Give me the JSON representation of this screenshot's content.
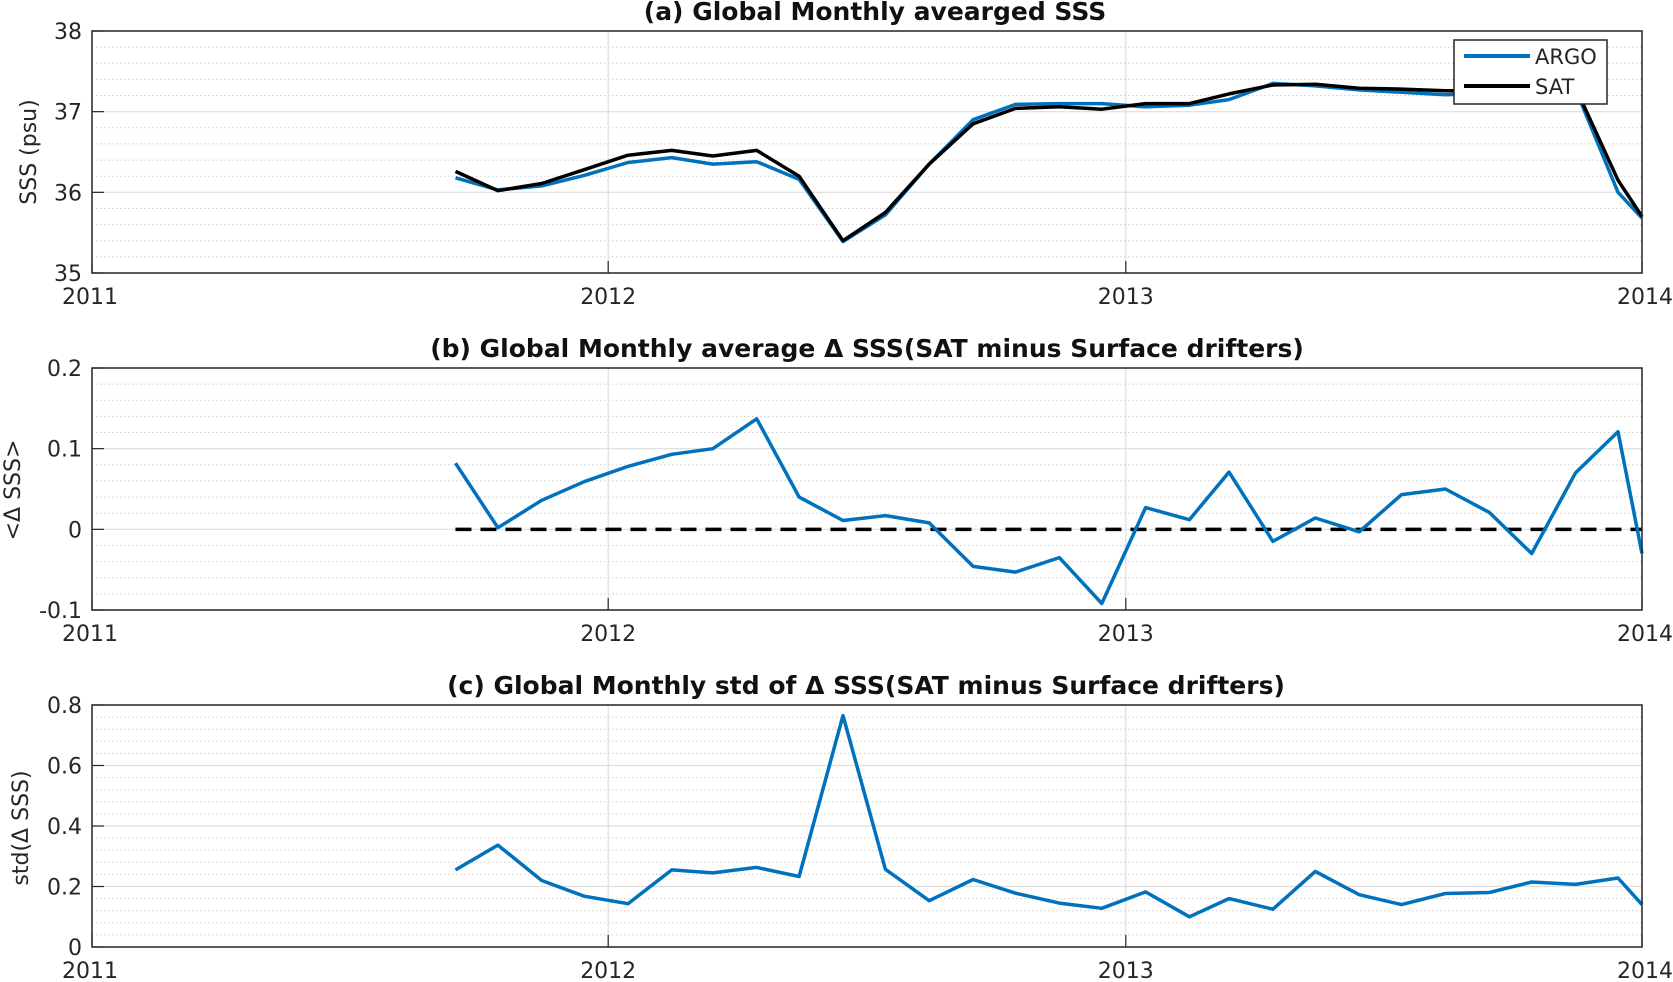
{
  "chart_data": [
    {
      "type": "line",
      "title": "(a) Global Monthly avearged SSS",
      "xlabel": "",
      "ylabel": "SSS (psu)",
      "xlim": [
        "2011-01-01",
        "2014-01-01"
      ],
      "ylim": [
        35,
        38
      ],
      "xticks": [
        "2011-01-01",
        "2012-01-01",
        "2013-01-01",
        "2014-01-01"
      ],
      "xtick_labels": [
        "2011",
        "2012",
        "2013",
        "2014"
      ],
      "yticks": [
        35,
        36,
        37,
        38
      ],
      "ytick_labels": [
        "35",
        "36",
        "37",
        "38"
      ],
      "grid": true,
      "minor_grid": true,
      "legend": "top-right",
      "x": [
        "2011-09-15",
        "2011-10-15",
        "2011-11-15",
        "2011-12-15",
        "2012-01-15",
        "2012-02-15",
        "2012-03-15",
        "2012-04-15",
        "2012-05-15",
        "2012-06-15",
        "2012-07-15",
        "2012-08-15",
        "2012-09-15",
        "2012-10-15",
        "2012-11-15",
        "2012-12-15",
        "2013-01-15",
        "2013-02-15",
        "2013-03-15",
        "2013-04-15",
        "2013-05-15",
        "2013-06-15",
        "2013-07-15",
        "2013-08-15",
        "2013-09-15",
        "2013-10-15",
        "2013-11-15",
        "2013-12-15",
        "2014-01-01"
      ],
      "series": [
        {
          "name": "ARGO",
          "color": "#0072BD",
          "values": [
            36.18,
            36.03,
            36.08,
            36.21,
            36.37,
            36.43,
            36.35,
            36.38,
            36.16,
            35.39,
            35.72,
            36.35,
            36.9,
            37.09,
            37.1,
            37.1,
            37.06,
            37.08,
            37.15,
            37.35,
            37.32,
            37.27,
            37.24,
            37.21,
            37.23,
            37.31,
            37.28,
            36.0,
            35.68
          ]
        },
        {
          "name": "SAT",
          "color": "#000000",
          "values": [
            36.26,
            36.02,
            36.11,
            36.28,
            36.46,
            36.52,
            36.45,
            36.52,
            36.2,
            35.4,
            35.75,
            36.35,
            36.85,
            37.04,
            37.06,
            37.03,
            37.1,
            37.1,
            37.22,
            37.33,
            37.34,
            37.29,
            37.28,
            37.26,
            37.26,
            37.34,
            37.3,
            36.15,
            35.7
          ]
        }
      ]
    },
    {
      "type": "line",
      "title": "(b) Global Monthly average Δ SSS(SAT minus Surface drifters)",
      "xlabel": "",
      "ylabel": "<Δ SSS>",
      "xlim": [
        "2011-01-01",
        "2014-01-01"
      ],
      "ylim": [
        -0.1,
        0.2
      ],
      "xticks": [
        "2011-01-01",
        "2012-01-01",
        "2013-01-01",
        "2014-01-01"
      ],
      "xtick_labels": [
        "2011",
        "2012",
        "2013",
        "2014"
      ],
      "yticks": [
        -0.1,
        0,
        0.1,
        0.2
      ],
      "ytick_labels": [
        "-0.1",
        "0",
        "0.1",
        "0.2"
      ],
      "grid": true,
      "minor_grid": true,
      "zero_line": {
        "style": "dashed",
        "color": "#000000",
        "x_from": "2011-09-15",
        "x_to": "2014-01-01"
      },
      "x": [
        "2011-09-15",
        "2011-10-15",
        "2011-11-15",
        "2011-12-15",
        "2012-01-15",
        "2012-02-15",
        "2012-03-15",
        "2012-04-15",
        "2012-05-15",
        "2012-06-15",
        "2012-07-15",
        "2012-08-15",
        "2012-09-15",
        "2012-10-15",
        "2012-11-15",
        "2012-12-15",
        "2013-01-15",
        "2013-02-15",
        "2013-03-15",
        "2013-04-15",
        "2013-05-15",
        "2013-06-15",
        "2013-07-15",
        "2013-08-15",
        "2013-09-15",
        "2013-10-15",
        "2013-11-15",
        "2013-12-15",
        "2014-01-01"
      ],
      "series": [
        {
          "color": "#0072BD",
          "values": [
            0.082,
            0.002,
            0.036,
            0.059,
            0.078,
            0.093,
            0.1,
            0.137,
            0.04,
            0.011,
            0.017,
            0.008,
            -0.046,
            -0.053,
            -0.035,
            -0.092,
            0.027,
            0.012,
            0.071,
            -0.015,
            0.014,
            -0.003,
            0.043,
            0.05,
            0.021,
            -0.03,
            0.07,
            0.121,
            -0.03
          ]
        }
      ]
    },
    {
      "type": "line",
      "title": "(c) Global Monthly std of Δ SSS(SAT minus Surface drifters)",
      "xlabel": "",
      "ylabel": "std(Δ SSS)",
      "xlim": [
        "2011-01-01",
        "2014-01-01"
      ],
      "ylim": [
        0,
        0.8
      ],
      "xticks": [
        "2011-01-01",
        "2012-01-01",
        "2013-01-01",
        "2014-01-01"
      ],
      "xtick_labels": [
        "2011",
        "2012",
        "2013",
        "2014"
      ],
      "yticks": [
        0,
        0.2,
        0.4,
        0.6,
        0.8
      ],
      "ytick_labels": [
        "0",
        "0.2",
        "0.4",
        "0.6",
        "0.8"
      ],
      "grid": true,
      "minor_grid": true,
      "x": [
        "2011-09-15",
        "2011-10-15",
        "2011-11-15",
        "2011-12-15",
        "2012-01-15",
        "2012-02-15",
        "2012-03-15",
        "2012-04-15",
        "2012-05-15",
        "2012-06-15",
        "2012-07-15",
        "2012-08-15",
        "2012-09-15",
        "2012-10-15",
        "2012-11-15",
        "2012-12-15",
        "2013-01-15",
        "2013-02-15",
        "2013-03-15",
        "2013-04-15",
        "2013-05-15",
        "2013-06-15",
        "2013-07-15",
        "2013-08-15",
        "2013-09-15",
        "2013-10-15",
        "2013-11-15",
        "2013-12-15",
        "2014-01-01"
      ],
      "series": [
        {
          "color": "#0072BD",
          "values": [
            0.255,
            0.337,
            0.22,
            0.168,
            0.143,
            0.255,
            0.245,
            0.263,
            0.233,
            0.765,
            0.257,
            0.153,
            0.223,
            0.178,
            0.145,
            0.128,
            0.182,
            0.1,
            0.16,
            0.125,
            0.25,
            0.173,
            0.14,
            0.177,
            0.18,
            0.215,
            0.207,
            0.228,
            0.14
          ]
        }
      ]
    }
  ]
}
